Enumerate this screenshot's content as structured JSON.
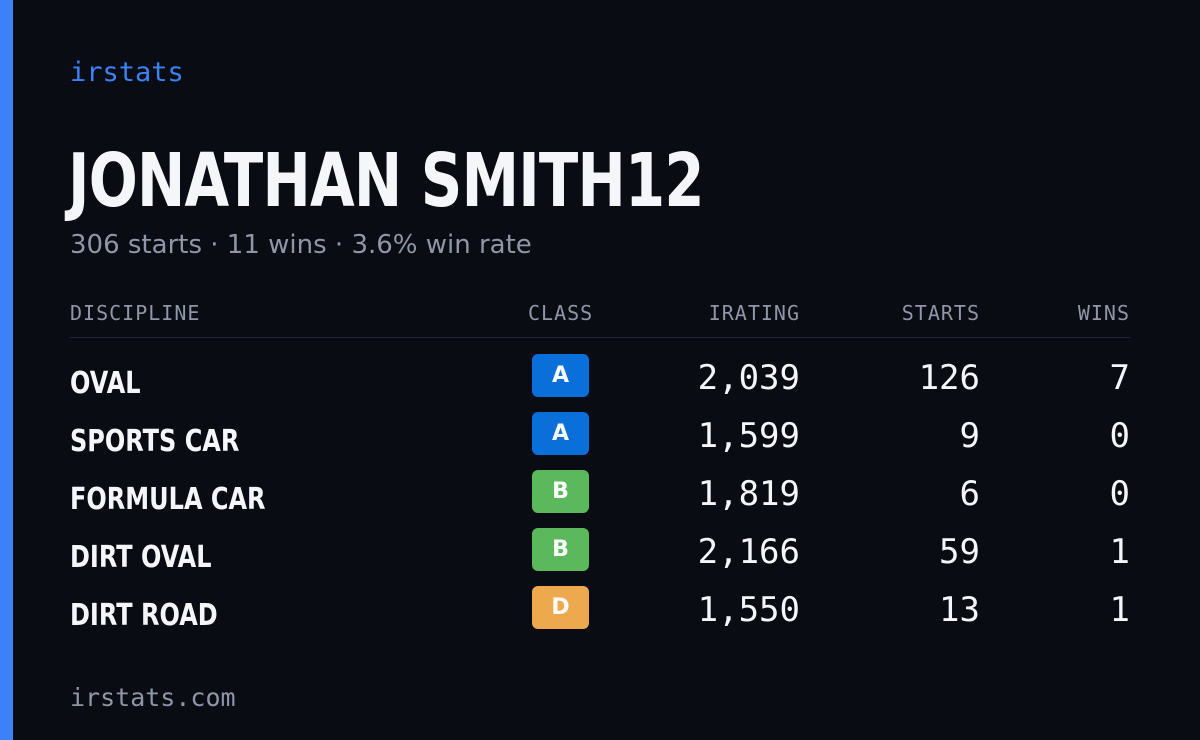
{
  "brand": "irstats",
  "profile": {
    "name": "JONATHAN SMITH12",
    "summary": "306 starts · 11 wins · 3.6% win rate"
  },
  "table": {
    "headers": {
      "discipline": "DISCIPLINE",
      "class": "CLASS",
      "irating": "IRATING",
      "starts": "STARTS",
      "wins": "WINS"
    },
    "rows": [
      {
        "discipline": "OVAL",
        "class": "A",
        "class_color": "#0b6fd9",
        "irating": "2,039",
        "starts": "126",
        "wins": "7"
      },
      {
        "discipline": "SPORTS CAR",
        "class": "A",
        "class_color": "#0b6fd9",
        "irating": "1,599",
        "starts": "9",
        "wins": "0"
      },
      {
        "discipline": "FORMULA CAR",
        "class": "B",
        "class_color": "#5cb85c",
        "irating": "1,819",
        "starts": "6",
        "wins": "0"
      },
      {
        "discipline": "DIRT OVAL",
        "class": "B",
        "class_color": "#5cb85c",
        "irating": "2,166",
        "starts": "59",
        "wins": "1"
      },
      {
        "discipline": "DIRT ROAD",
        "class": "D",
        "class_color": "#eea94e",
        "irating": "1,550",
        "starts": "13",
        "wins": "1"
      }
    ]
  },
  "footer": "irstats.com",
  "colors": {
    "accent": "#3b82f6",
    "background": "#0a0c14",
    "muted": "#8e96a8"
  }
}
